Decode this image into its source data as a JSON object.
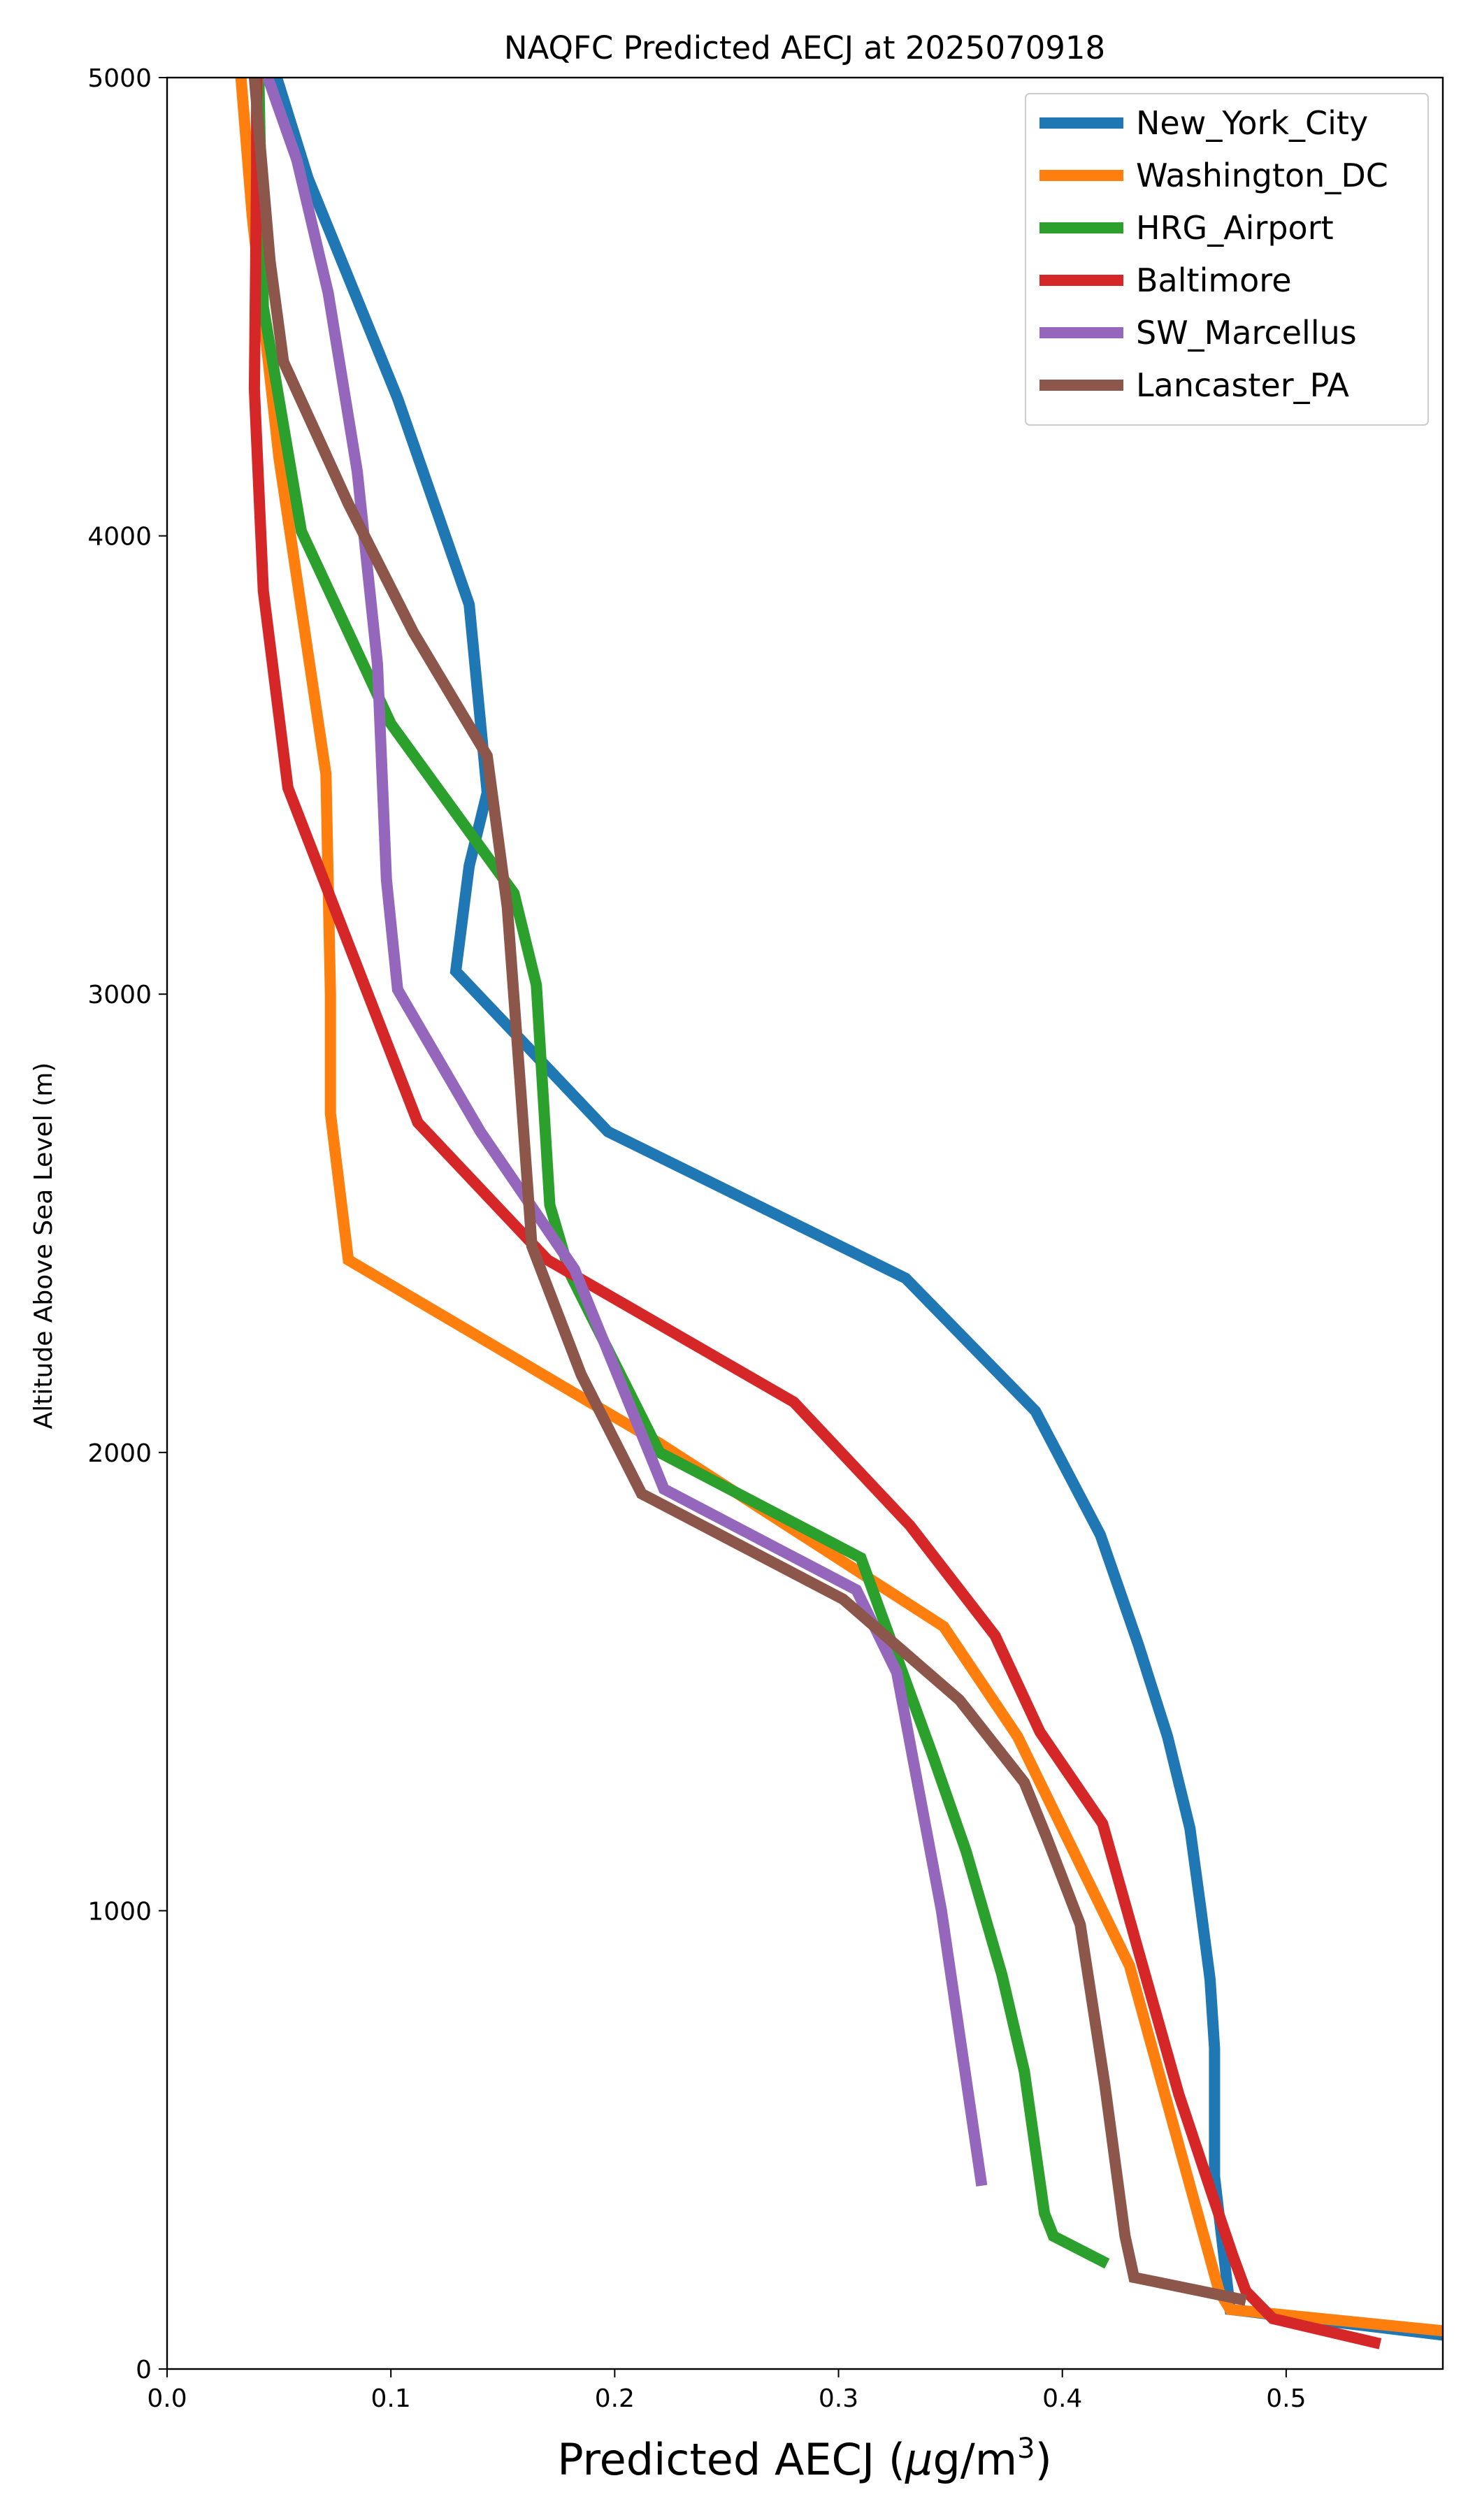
{
  "chart_data": {
    "type": "line",
    "title": "NAQFC Predicted AECJ at 2025070918",
    "xlabel": "Predicted AECJ (μg/m3)",
    "xlabel_parts": {
      "main": "Predicted AECJ (",
      "mu": "μ",
      "g": "g/m",
      "sup": "3",
      "close": ")"
    },
    "ylabel": "Altitude Above Sea Level (m)",
    "xlim": [
      0,
      0.57
    ],
    "ylim": [
      0,
      5000
    ],
    "xticks": [
      "0.0",
      "0.1",
      "0.2",
      "0.3",
      "0.4",
      "0.5"
    ],
    "xtick_values": [
      0,
      0.1,
      0.2,
      0.3,
      0.4,
      0.5
    ],
    "yticks": [
      "0",
      "1000",
      "2000",
      "3000",
      "4000",
      "5000"
    ],
    "ytick_values": [
      0,
      1000,
      2000,
      3000,
      4000,
      5000
    ],
    "grid": false,
    "legend_position": "top-right",
    "series": [
      {
        "name": "New_York_City",
        "color": "#1f77b4",
        "points": [
          [
            0.577,
            70
          ],
          [
            0.475,
            130
          ],
          [
            0.468,
            420
          ],
          [
            0.468,
            700
          ],
          [
            0.466,
            850
          ],
          [
            0.462,
            1000
          ],
          [
            0.457,
            1180
          ],
          [
            0.447,
            1380
          ],
          [
            0.434,
            1580
          ],
          [
            0.417,
            1820
          ],
          [
            0.388,
            2090
          ],
          [
            0.33,
            2380
          ],
          [
            0.197,
            2700
          ],
          [
            0.129,
            3050
          ],
          [
            0.135,
            3280
          ],
          [
            0.143,
            3440
          ],
          [
            0.135,
            3850
          ],
          [
            0.103,
            4300
          ],
          [
            0.063,
            4780
          ],
          [
            0.049,
            5000
          ]
        ]
      },
      {
        "name": "Washington_DC",
        "color": "#ff7f0e",
        "points": [
          [
            0.577,
            80
          ],
          [
            0.475,
            130
          ],
          [
            0.47,
            170
          ],
          [
            0.43,
            880
          ],
          [
            0.38,
            1380
          ],
          [
            0.347,
            1620
          ],
          [
            0.22,
            2020
          ],
          [
            0.081,
            2420
          ],
          [
            0.073,
            2740
          ],
          [
            0.073,
            3000
          ],
          [
            0.071,
            3480
          ],
          [
            0.05,
            4170
          ],
          [
            0.038,
            4700
          ],
          [
            0.033,
            5000
          ]
        ]
      },
      {
        "name": "HRG_Airport",
        "color": "#2ca02c",
        "points": [
          [
            0.42,
            230
          ],
          [
            0.396,
            290
          ],
          [
            0.392,
            340
          ],
          [
            0.383,
            650
          ],
          [
            0.373,
            860
          ],
          [
            0.357,
            1130
          ],
          [
            0.342,
            1340
          ],
          [
            0.31,
            1770
          ],
          [
            0.22,
            2000
          ],
          [
            0.18,
            2390
          ],
          [
            0.171,
            2540
          ],
          [
            0.165,
            3020
          ],
          [
            0.155,
            3220
          ],
          [
            0.1,
            3590
          ],
          [
            0.06,
            4010
          ],
          [
            0.043,
            4500
          ],
          [
            0.041,
            5000
          ]
        ]
      },
      {
        "name": "Baltimore",
        "color": "#d62728",
        "points": [
          [
            0.542,
            55
          ],
          [
            0.494,
            110
          ],
          [
            0.482,
            170
          ],
          [
            0.476,
            250
          ],
          [
            0.467,
            380
          ],
          [
            0.452,
            600
          ],
          [
            0.418,
            1190
          ],
          [
            0.39,
            1390
          ],
          [
            0.37,
            1600
          ],
          [
            0.332,
            1840
          ],
          [
            0.28,
            2110
          ],
          [
            0.17,
            2420
          ],
          [
            0.112,
            2720
          ],
          [
            0.054,
            3450
          ],
          [
            0.043,
            3880
          ],
          [
            0.039,
            4320
          ],
          [
            0.04,
            4800
          ],
          [
            0.04,
            5000
          ]
        ]
      },
      {
        "name": "SW_Marcellus",
        "color": "#9467bd",
        "points": [
          [
            0.364,
            400
          ],
          [
            0.346,
            1000
          ],
          [
            0.326,
            1520
          ],
          [
            0.308,
            1700
          ],
          [
            0.222,
            1920
          ],
          [
            0.182,
            2400
          ],
          [
            0.14,
            2700
          ],
          [
            0.103,
            3010
          ],
          [
            0.098,
            3250
          ],
          [
            0.094,
            3720
          ],
          [
            0.085,
            4140
          ],
          [
            0.072,
            4530
          ],
          [
            0.058,
            4820
          ],
          [
            0.045,
            5000
          ]
        ]
      },
      {
        "name": "Lancaster_PA",
        "color": "#8c564b",
        "points": [
          [
            0.482,
            150
          ],
          [
            0.432,
            200
          ],
          [
            0.428,
            290
          ],
          [
            0.419,
            620
          ],
          [
            0.408,
            970
          ],
          [
            0.393,
            1160
          ],
          [
            0.383,
            1280
          ],
          [
            0.354,
            1460
          ],
          [
            0.302,
            1680
          ],
          [
            0.212,
            1910
          ],
          [
            0.185,
            2170
          ],
          [
            0.163,
            2450
          ],
          [
            0.158,
            2790
          ],
          [
            0.152,
            3190
          ],
          [
            0.143,
            3520
          ],
          [
            0.11,
            3790
          ],
          [
            0.081,
            4070
          ],
          [
            0.052,
            4380
          ],
          [
            0.046,
            4600
          ],
          [
            0.039,
            5000
          ]
        ]
      }
    ]
  }
}
